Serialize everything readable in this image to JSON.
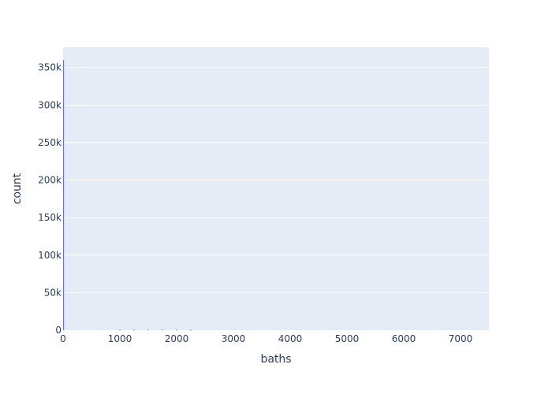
{
  "chart_data": {
    "type": "bar",
    "xlabel": "baths",
    "ylabel": "count",
    "xlim": [
      0,
      7500
    ],
    "ylim": [
      0,
      377000
    ],
    "x_ticks": [
      0,
      1000,
      2000,
      3000,
      4000,
      5000,
      6000,
      7000
    ],
    "y_ticks": [
      0,
      50000,
      100000,
      150000,
      200000,
      250000,
      300000,
      350000
    ],
    "y_tick_labels": [
      "0",
      "50k",
      "100k",
      "150k",
      "200k",
      "250k",
      "300k",
      "350k"
    ],
    "bins": [
      {
        "x0": 0,
        "x1": 10,
        "count": 360000
      },
      {
        "x0": 990,
        "x1": 1010,
        "count": 600
      },
      {
        "x0": 1240,
        "x1": 1260,
        "count": 600
      },
      {
        "x0": 1490,
        "x1": 1510,
        "count": 900
      },
      {
        "x0": 1740,
        "x1": 1760,
        "count": 900
      },
      {
        "x0": 1990,
        "x1": 2010,
        "count": 600
      },
      {
        "x0": 2240,
        "x1": 2260,
        "count": 500
      }
    ],
    "grid": true,
    "colors": {
      "plot_bg": "#e5ecf6",
      "grid": "#ffffff",
      "bar": "#636efa",
      "text": "#2a3f5f"
    }
  }
}
